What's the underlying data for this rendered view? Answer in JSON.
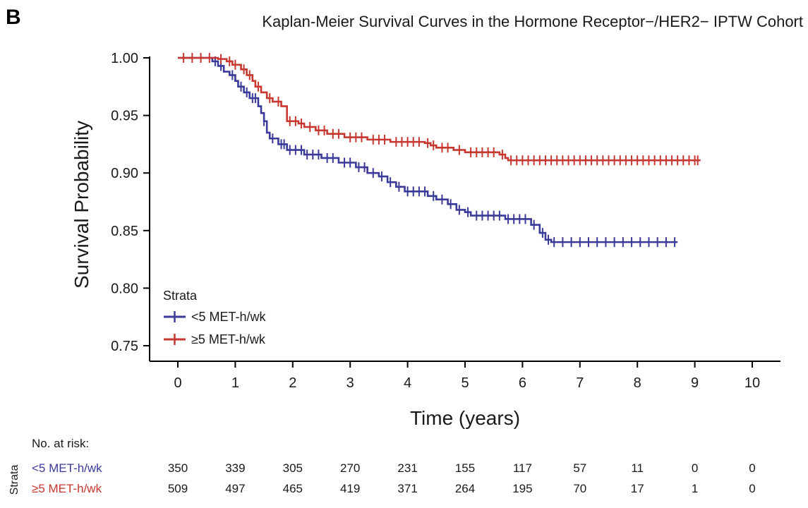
{
  "panel_label": "B",
  "chart_data": {
    "type": "line",
    "title": "Kaplan-Meier Survival Curves in the Hormone Receptor−/HER2− IPTW Cohort",
    "xlabel": "Time (years)",
    "ylabel": "Survival Probability",
    "xlim": [
      0,
      10
    ],
    "ylim": [
      0.75,
      1.0
    ],
    "x_ticks": [
      0,
      1,
      2,
      3,
      4,
      5,
      6,
      7,
      8,
      9,
      10
    ],
    "y_ticks": [
      "0.75",
      "0.80",
      "0.85",
      "0.90",
      "0.95",
      "1.00"
    ],
    "grid": false,
    "legend": {
      "title": "Strata",
      "position": "bottom-left"
    },
    "series": [
      {
        "name": "<5 MET-h/wk",
        "color": "#3a3a9a",
        "steps": [
          [
            0,
            1.0
          ],
          [
            0.6,
            0.997
          ],
          [
            0.7,
            0.993
          ],
          [
            0.8,
            0.988
          ],
          [
            0.9,
            0.985
          ],
          [
            1.0,
            0.98
          ],
          [
            1.05,
            0.975
          ],
          [
            1.15,
            0.97
          ],
          [
            1.25,
            0.965
          ],
          [
            1.4,
            0.958
          ],
          [
            1.45,
            0.952
          ],
          [
            1.5,
            0.945
          ],
          [
            1.55,
            0.935
          ],
          [
            1.6,
            0.93
          ],
          [
            1.75,
            0.925
          ],
          [
            1.9,
            0.92
          ],
          [
            2.2,
            0.916
          ],
          [
            2.5,
            0.913
          ],
          [
            2.8,
            0.909
          ],
          [
            3.1,
            0.905
          ],
          [
            3.3,
            0.9
          ],
          [
            3.5,
            0.897
          ],
          [
            3.65,
            0.892
          ],
          [
            3.8,
            0.888
          ],
          [
            3.95,
            0.884
          ],
          [
            4.35,
            0.88
          ],
          [
            4.5,
            0.877
          ],
          [
            4.7,
            0.873
          ],
          [
            4.85,
            0.868
          ],
          [
            5.0,
            0.866
          ],
          [
            5.1,
            0.863
          ],
          [
            5.7,
            0.86
          ],
          [
            6.15,
            0.855
          ],
          [
            6.3,
            0.848
          ],
          [
            6.4,
            0.842
          ],
          [
            6.5,
            0.84
          ],
          [
            8.7,
            0.84
          ]
        ],
        "censor_times": [
          0.65,
          0.75,
          0.95,
          1.1,
          1.2,
          1.3,
          1.35,
          1.5,
          1.65,
          1.8,
          1.85,
          1.95,
          2.05,
          2.15,
          2.25,
          2.35,
          2.45,
          2.6,
          2.7,
          2.9,
          3.0,
          3.15,
          3.25,
          3.4,
          3.55,
          3.7,
          3.85,
          4.0,
          4.1,
          4.2,
          4.3,
          4.45,
          4.6,
          4.75,
          4.9,
          5.05,
          5.2,
          5.3,
          5.4,
          5.5,
          5.6,
          5.75,
          5.85,
          5.95,
          6.05,
          6.2,
          6.35,
          6.45,
          6.55,
          6.7,
          6.85,
          7.0,
          7.15,
          7.3,
          7.45,
          7.6,
          7.75,
          7.9,
          8.05,
          8.2,
          8.35,
          8.5,
          8.65
        ]
      },
      {
        "name": "≥5 MET-h/wk",
        "color": "#c7372f",
        "steps": [
          [
            0,
            1.0
          ],
          [
            0.7,
            0.999
          ],
          [
            0.85,
            0.997
          ],
          [
            0.95,
            0.994
          ],
          [
            1.1,
            0.99
          ],
          [
            1.2,
            0.985
          ],
          [
            1.3,
            0.98
          ],
          [
            1.35,
            0.975
          ],
          [
            1.45,
            0.97
          ],
          [
            1.55,
            0.965
          ],
          [
            1.65,
            0.962
          ],
          [
            1.8,
            0.958
          ],
          [
            1.9,
            0.945
          ],
          [
            2.1,
            0.943
          ],
          [
            2.2,
            0.94
          ],
          [
            2.4,
            0.937
          ],
          [
            2.6,
            0.934
          ],
          [
            2.9,
            0.931
          ],
          [
            3.3,
            0.929
          ],
          [
            3.7,
            0.927
          ],
          [
            4.3,
            0.926
          ],
          [
            4.4,
            0.924
          ],
          [
            4.5,
            0.922
          ],
          [
            4.8,
            0.92
          ],
          [
            5.0,
            0.918
          ],
          [
            5.6,
            0.916
          ],
          [
            5.7,
            0.913
          ],
          [
            5.75,
            0.911
          ],
          [
            9.1,
            0.911
          ]
        ],
        "censor_times": [
          0.1,
          0.25,
          0.4,
          0.55,
          0.75,
          0.9,
          1.0,
          1.15,
          1.25,
          1.4,
          1.6,
          1.75,
          1.95,
          2.05,
          2.15,
          2.3,
          2.45,
          2.55,
          2.7,
          2.8,
          3.0,
          3.1,
          3.2,
          3.4,
          3.5,
          3.6,
          3.8,
          3.9,
          4.0,
          4.1,
          4.2,
          4.35,
          4.45,
          4.6,
          4.7,
          4.9,
          5.1,
          5.2,
          5.3,
          5.4,
          5.5,
          5.65,
          5.8,
          5.9,
          6.0,
          6.1,
          6.2,
          6.3,
          6.4,
          6.5,
          6.6,
          6.7,
          6.8,
          6.9,
          7.0,
          7.1,
          7.2,
          7.3,
          7.4,
          7.5,
          7.6,
          7.7,
          7.8,
          7.9,
          8.0,
          8.1,
          8.2,
          8.3,
          8.4,
          8.5,
          8.6,
          8.7,
          8.8,
          8.9,
          9.0,
          9.05
        ]
      }
    ]
  },
  "risk_table": {
    "title": "No. at risk:",
    "side_label": "Strata",
    "times": [
      0,
      1,
      2,
      3,
      4,
      5,
      6,
      7,
      8,
      9,
      10
    ],
    "rows": [
      {
        "label": "<5 MET-h/wk",
        "color": "#3a3a9a",
        "values": [
          "350",
          "339",
          "305",
          "270",
          "231",
          "155",
          "117",
          "57",
          "11",
          "0",
          "0"
        ]
      },
      {
        "label": "≥5 MET-h/wk",
        "color": "#c7372f",
        "values": [
          "509",
          "497",
          "465",
          "419",
          "371",
          "264",
          "195",
          "70",
          "17",
          "1",
          "0"
        ]
      }
    ]
  }
}
